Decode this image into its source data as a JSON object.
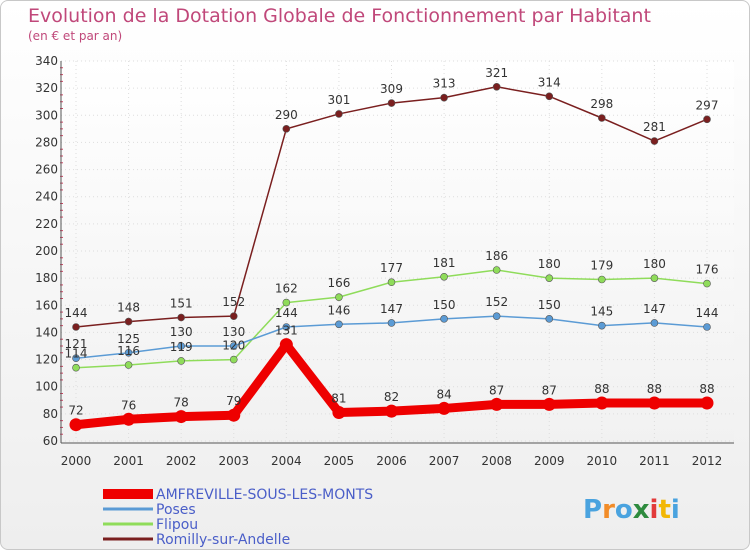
{
  "chart_data": {
    "type": "line",
    "title": "Evolution de la Dotation Globale de Fonctionnement par Habitant",
    "subtitle": "(en € et par an)",
    "x": [
      "2000",
      "2001",
      "2002",
      "2003",
      "2004",
      "2005",
      "2006",
      "2007",
      "2008",
      "2009",
      "2010",
      "2011",
      "2012"
    ],
    "ylim": [
      60,
      340
    ],
    "yticks": [
      60,
      80,
      100,
      120,
      140,
      160,
      180,
      200,
      220,
      240,
      260,
      280,
      300,
      320,
      340
    ],
    "grid": true,
    "legend_position": "bottom-left",
    "series": [
      {
        "name": "AMFREVILLE-SOUS-LES-MONTS",
        "color": "#ee0000",
        "values": [
          72,
          76,
          78,
          79,
          131,
          81,
          82,
          84,
          87,
          87,
          88,
          88,
          88
        ]
      },
      {
        "name": "Poses",
        "color": "#5b9bd5",
        "values": [
          121,
          125,
          130,
          130,
          144,
          146,
          147,
          150,
          152,
          150,
          145,
          147,
          144
        ]
      },
      {
        "name": "Flipou",
        "color": "#8fdc5a",
        "values": [
          114,
          116,
          119,
          120,
          162,
          166,
          177,
          181,
          186,
          180,
          179,
          180,
          176
        ]
      },
      {
        "name": "Romilly-sur-Andelle",
        "color": "#7a1f1f",
        "values": [
          144,
          148,
          151,
          152,
          290,
          301,
          309,
          313,
          321,
          314,
          298,
          281,
          297
        ]
      }
    ]
  },
  "logo": {
    "text": "Proxiti"
  }
}
